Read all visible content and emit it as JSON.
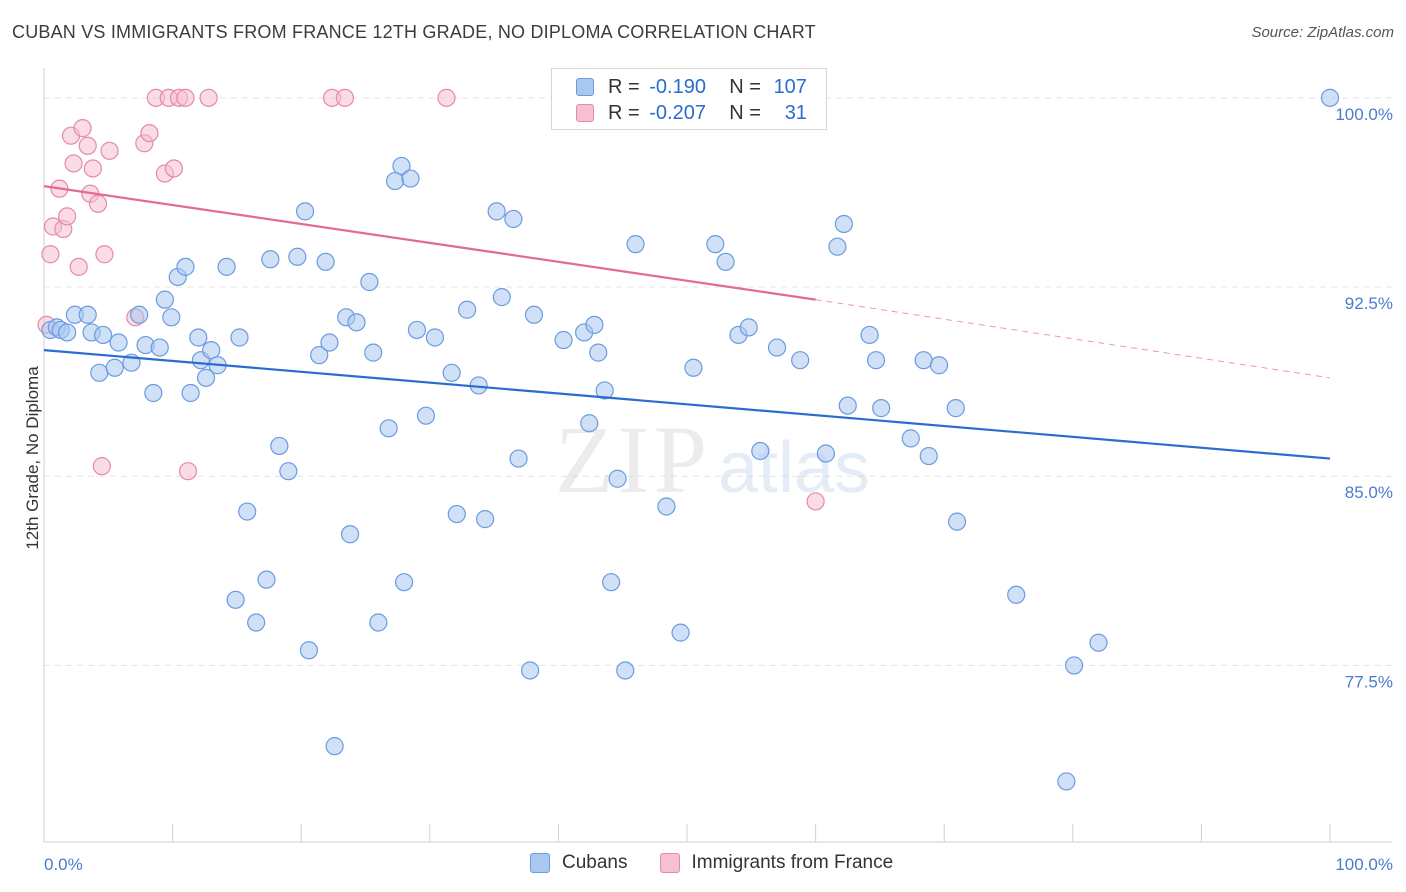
{
  "title": "CUBAN VS IMMIGRANTS FROM FRANCE 12TH GRADE, NO DIPLOMA CORRELATION CHART",
  "source": "Source: ZipAtlas.com",
  "watermark": {
    "zip": "ZIP",
    "atlas": "atlas"
  },
  "legend": {
    "rows": [
      {
        "r_label": "R =",
        "r_value": "-0.190",
        "n_label": "N =",
        "n_value": "107",
        "color": "#a9c8f0",
        "border": "#6a9be0"
      },
      {
        "r_label": "R =",
        "r_value": "-0.207",
        "n_label": "N =",
        "n_value": "31",
        "color": "#f6c0d0",
        "border": "#e58aa8"
      }
    ]
  },
  "bottom_legend": [
    {
      "label": "Cubans",
      "color": "#a9c8f0",
      "border": "#6a9be0"
    },
    {
      "label": "Immigrants from France",
      "color": "#f6c0d0",
      "border": "#e58aa8"
    }
  ],
  "chart_data": {
    "type": "scatter",
    "title": "CUBAN VS IMMIGRANTS FROM FRANCE 12TH GRADE, NO DIPLOMA CORRELATION CHART",
    "xlabel": "",
    "ylabel": "12th Grade, No Diploma",
    "xlim": [
      0,
      100
    ],
    "ylim": [
      70.5,
      101.5
    ],
    "x_tick_labels": [
      "0.0%",
      "100.0%"
    ],
    "y_ticks": [
      {
        "value": 100.0,
        "label": "100.0%"
      },
      {
        "value": 92.5,
        "label": "92.5%"
      },
      {
        "value": 85.0,
        "label": "85.0%"
      },
      {
        "value": 77.5,
        "label": "77.5%"
      }
    ],
    "grid": "horizontal dashed",
    "series": [
      {
        "name": "Cubans",
        "color": "#a9c8f0",
        "border": "#6a9be0",
        "trend": {
          "x": [
            0,
            100
          ],
          "y": [
            90.0,
            85.7
          ],
          "color": "#2a6ccf"
        },
        "points": [
          [
            0.5,
            90.8
          ],
          [
            1.0,
            90.9
          ],
          [
            1.3,
            90.8
          ],
          [
            1.8,
            90.7
          ],
          [
            2.4,
            91.4
          ],
          [
            3.4,
            91.4
          ],
          [
            3.7,
            90.7
          ],
          [
            4.6,
            90.6
          ],
          [
            4.3,
            89.1
          ],
          [
            5.5,
            89.3
          ],
          [
            5.8,
            90.3
          ],
          [
            6.8,
            89.5
          ],
          [
            7.4,
            91.4
          ],
          [
            7.9,
            90.2
          ],
          [
            8.5,
            88.3
          ],
          [
            9.0,
            90.1
          ],
          [
            9.4,
            92.0
          ],
          [
            9.9,
            91.3
          ],
          [
            10.4,
            92.9
          ],
          [
            11.0,
            93.3
          ],
          [
            11.4,
            88.3
          ],
          [
            12.0,
            90.5
          ],
          [
            12.2,
            89.6
          ],
          [
            12.6,
            88.9
          ],
          [
            13.0,
            90.0
          ],
          [
            13.5,
            89.4
          ],
          [
            14.2,
            93.3
          ],
          [
            15.2,
            90.5
          ],
          [
            15.8,
            83.6
          ],
          [
            14.9,
            80.1
          ],
          [
            16.5,
            79.2
          ],
          [
            17.3,
            80.9
          ],
          [
            17.6,
            93.6
          ],
          [
            18.3,
            86.2
          ],
          [
            19.0,
            85.2
          ],
          [
            19.7,
            93.7
          ],
          [
            20.3,
            95.5
          ],
          [
            20.6,
            78.1
          ],
          [
            21.4,
            89.8
          ],
          [
            21.9,
            93.5
          ],
          [
            22.2,
            90.3
          ],
          [
            22.6,
            74.3
          ],
          [
            23.5,
            91.3
          ],
          [
            23.8,
            82.7
          ],
          [
            24.3,
            91.1
          ],
          [
            25.3,
            92.7
          ],
          [
            25.6,
            89.9
          ],
          [
            26.0,
            79.2
          ],
          [
            26.8,
            86.9
          ],
          [
            27.3,
            96.7
          ],
          [
            27.8,
            97.3
          ],
          [
            28.0,
            80.8
          ],
          [
            28.5,
            96.8
          ],
          [
            29.0,
            90.8
          ],
          [
            29.7,
            87.4
          ],
          [
            30.4,
            90.5
          ],
          [
            31.7,
            89.1
          ],
          [
            32.1,
            83.5
          ],
          [
            32.9,
            91.6
          ],
          [
            33.8,
            88.6
          ],
          [
            34.3,
            83.3
          ],
          [
            35.2,
            95.5
          ],
          [
            35.6,
            92.1
          ],
          [
            36.5,
            95.2
          ],
          [
            36.9,
            85.7
          ],
          [
            37.8,
            77.3
          ],
          [
            38.1,
            91.4
          ],
          [
            40.4,
            90.4
          ],
          [
            42.0,
            90.7
          ],
          [
            42.4,
            87.1
          ],
          [
            42.8,
            91.0
          ],
          [
            43.1,
            89.9
          ],
          [
            43.6,
            88.4
          ],
          [
            44.1,
            80.8
          ],
          [
            44.6,
            84.9
          ],
          [
            45.2,
            77.3
          ],
          [
            46.0,
            94.2
          ],
          [
            48.4,
            83.8
          ],
          [
            49.5,
            78.8
          ],
          [
            50.5,
            89.3
          ],
          [
            52.2,
            94.2
          ],
          [
            53.0,
            93.5
          ],
          [
            54.0,
            90.6
          ],
          [
            54.8,
            90.9
          ],
          [
            55.7,
            86.0
          ],
          [
            57.0,
            90.1
          ],
          [
            58.8,
            89.6
          ],
          [
            60.8,
            85.9
          ],
          [
            61.7,
            94.1
          ],
          [
            62.2,
            95.0
          ],
          [
            62.5,
            87.8
          ],
          [
            64.2,
            90.6
          ],
          [
            64.7,
            89.6
          ],
          [
            65.1,
            87.7
          ],
          [
            67.4,
            86.5
          ],
          [
            68.4,
            89.6
          ],
          [
            68.8,
            85.8
          ],
          [
            69.6,
            89.4
          ],
          [
            70.9,
            87.7
          ],
          [
            71.0,
            83.2
          ],
          [
            75.6,
            80.3
          ],
          [
            79.5,
            72.9
          ],
          [
            80.1,
            77.5
          ],
          [
            82.0,
            78.4
          ],
          [
            100.0,
            100.0
          ]
        ]
      },
      {
        "name": "Immigrants from France",
        "color": "#f6c0d0",
        "border": "#e58aa8",
        "trend": {
          "x": [
            0,
            60
          ],
          "y": [
            96.5,
            92.0
          ],
          "dashed_to": [
            100,
            88.9
          ],
          "color": "#e26b95"
        },
        "points": [
          [
            0.2,
            91.0
          ],
          [
            0.5,
            93.8
          ],
          [
            0.7,
            94.9
          ],
          [
            1.2,
            96.4
          ],
          [
            1.5,
            94.8
          ],
          [
            1.8,
            95.3
          ],
          [
            2.1,
            98.5
          ],
          [
            2.3,
            97.4
          ],
          [
            2.7,
            93.3
          ],
          [
            3.0,
            98.8
          ],
          [
            3.4,
            98.1
          ],
          [
            3.6,
            96.2
          ],
          [
            3.8,
            97.2
          ],
          [
            4.2,
            95.8
          ],
          [
            4.5,
            85.4
          ],
          [
            4.7,
            93.8
          ],
          [
            5.1,
            97.9
          ],
          [
            7.1,
            91.3
          ],
          [
            7.8,
            98.2
          ],
          [
            8.2,
            98.6
          ],
          [
            8.7,
            100.0
          ],
          [
            9.4,
            97.0
          ],
          [
            9.7,
            100.0
          ],
          [
            10.1,
            97.2
          ],
          [
            10.5,
            100.0
          ],
          [
            11.0,
            100.0
          ],
          [
            11.2,
            85.2
          ],
          [
            12.8,
            100.0
          ],
          [
            22.4,
            100.0
          ],
          [
            23.4,
            100.0
          ],
          [
            31.3,
            100.0
          ],
          [
            60.0,
            84.0
          ]
        ]
      }
    ]
  }
}
